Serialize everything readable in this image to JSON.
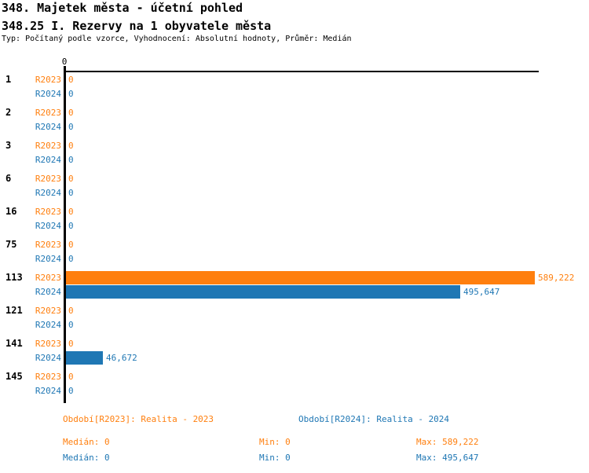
{
  "header": {
    "title": "348. Majetek města - účetní pohled",
    "subtitle": "348.25 I. Rezervy na 1 obyvatele města",
    "meta": "Typ: Počítaný podle vzorce, Vyhodnocení: Absolutní hodnoty, Průměr: Medián"
  },
  "chart_data": {
    "type": "bar",
    "orientation": "horizontal",
    "title": "348.25 I. Rezervy na 1 obyvatele města",
    "value_axis": {
      "min": 0,
      "max": 594000,
      "tick_labels": [
        "0"
      ],
      "grid": false
    },
    "categories": [
      "1",
      "2",
      "3",
      "6",
      "16",
      "75",
      "113",
      "121",
      "141",
      "145"
    ],
    "series": [
      {
        "name": "R2023",
        "color": "#ff7f0e",
        "legend": "Období[R2023]: Realita - 2023",
        "values": [
          0,
          0,
          0,
          0,
          0,
          0,
          589222,
          0,
          0,
          0
        ],
        "value_labels": [
          "0",
          "0",
          "0",
          "0",
          "0",
          "0",
          "589,222",
          "0",
          "0",
          "0"
        ],
        "stats": {
          "median": "Medián: 0",
          "min": "Min: 0",
          "max": "Max: 589,222"
        }
      },
      {
        "name": "R2024",
        "color": "#1f77b4",
        "legend": "Období[R2024]: Realita - 2024",
        "values": [
          0,
          0,
          0,
          0,
          0,
          0,
          495647,
          0,
          46672,
          0
        ],
        "value_labels": [
          "0",
          "0",
          "0",
          "0",
          "0",
          "0",
          "495,647",
          "0",
          "46,672",
          "0"
        ],
        "stats": {
          "median": "Medián: 0",
          "min": "Min: 0",
          "max": "Max: 495,647"
        }
      }
    ]
  }
}
